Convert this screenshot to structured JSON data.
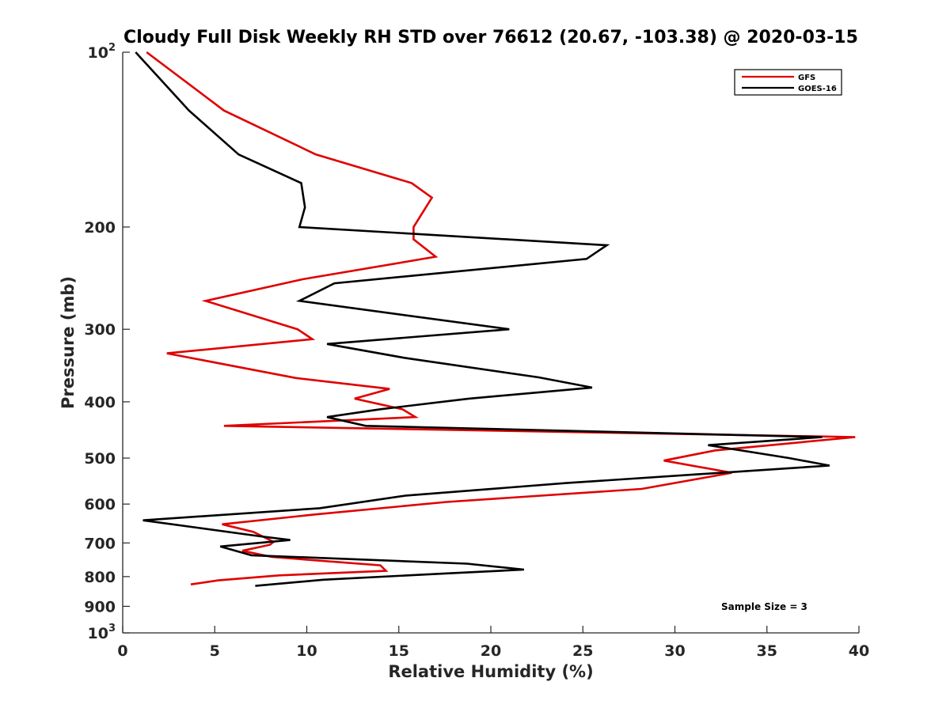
{
  "chart_data": {
    "type": "line",
    "title": "Cloudy Full Disk Weekly RH STD over 76612 (20.67, -103.38) @ 2020-03-15",
    "xlabel": "Relative Humidity (%)",
    "ylabel": "Pressure (mb)",
    "xlim": [
      0,
      40
    ],
    "ylim": [
      100,
      1000
    ],
    "yscale": "log",
    "y_reversed": true,
    "grid": false,
    "legend_position": "top-right",
    "x_ticks": [
      0,
      5,
      10,
      15,
      20,
      25,
      30,
      35,
      40
    ],
    "x_tick_labels": [
      "0",
      "5",
      "10",
      "15",
      "20",
      "25",
      "30",
      "35",
      "40"
    ],
    "y_ticks": [
      100,
      200,
      300,
      400,
      500,
      600,
      700,
      800,
      900,
      1000
    ],
    "y_tick_labels": [
      {
        "base": "10",
        "exp": "2"
      },
      {
        "base": "200",
        "exp": ""
      },
      {
        "base": "300",
        "exp": ""
      },
      {
        "base": "400",
        "exp": ""
      },
      {
        "base": "500",
        "exp": ""
      },
      {
        "base": "600",
        "exp": ""
      },
      {
        "base": "700",
        "exp": ""
      },
      {
        "base": "800",
        "exp": ""
      },
      {
        "base": "900",
        "exp": ""
      },
      {
        "base": "10",
        "exp": "3"
      }
    ],
    "series": [
      {
        "name": "GFS",
        "color": "#e00000",
        "x": [
          1.3,
          5.5,
          10.5,
          15.7,
          16.8,
          15.8,
          15.8,
          17.0,
          9.8,
          4.5,
          9.5,
          10.3,
          2.4,
          9.4,
          14.5,
          12.6,
          15.2,
          15.9,
          5.5,
          39.8,
          32.2,
          29.4,
          33.1,
          28.2,
          17.6,
          10.5,
          5.4,
          7.1,
          8.2,
          8.0,
          6.5,
          8.1,
          14.0,
          14.3,
          8.5,
          5.2,
          3.7
        ],
        "y": [
          100,
          126,
          150,
          168,
          178,
          200,
          210,
          225,
          246,
          268,
          300,
          312,
          330,
          364,
          380,
          395,
          412,
          425,
          440,
          460,
          485,
          505,
          530,
          565,
          595,
          625,
          650,
          670,
          697,
          705,
          722,
          740,
          765,
          782,
          796,
          812,
          825
        ]
      },
      {
        "name": "GOES-16",
        "color": "#000000",
        "x": [
          0.7,
          3.6,
          6.3,
          9.7,
          9.9,
          9.6,
          26.3,
          25.2,
          11.5,
          9.6,
          21.0,
          11.1,
          15.3,
          22.6,
          25.5,
          18.8,
          14.0,
          11.1,
          13.2,
          38.0,
          31.8,
          36.2,
          38.4,
          24.1,
          15.4,
          10.7,
          1.1,
          4.2,
          7.5,
          9.1,
          5.3,
          7.0,
          18.7,
          21.8,
          17.5,
          10.9,
          7.2
        ],
        "y": [
          100,
          126,
          150,
          168,
          185,
          200,
          215,
          227,
          250,
          268,
          300,
          318,
          336,
          363,
          378,
          395,
          412,
          425,
          440,
          460,
          475,
          500,
          515,
          552,
          580,
          610,
          640,
          660,
          682,
          692,
          710,
          735,
          760,
          778,
          790,
          810,
          830
        ]
      }
    ],
    "annotations": [
      "Sample Size = 3"
    ]
  }
}
